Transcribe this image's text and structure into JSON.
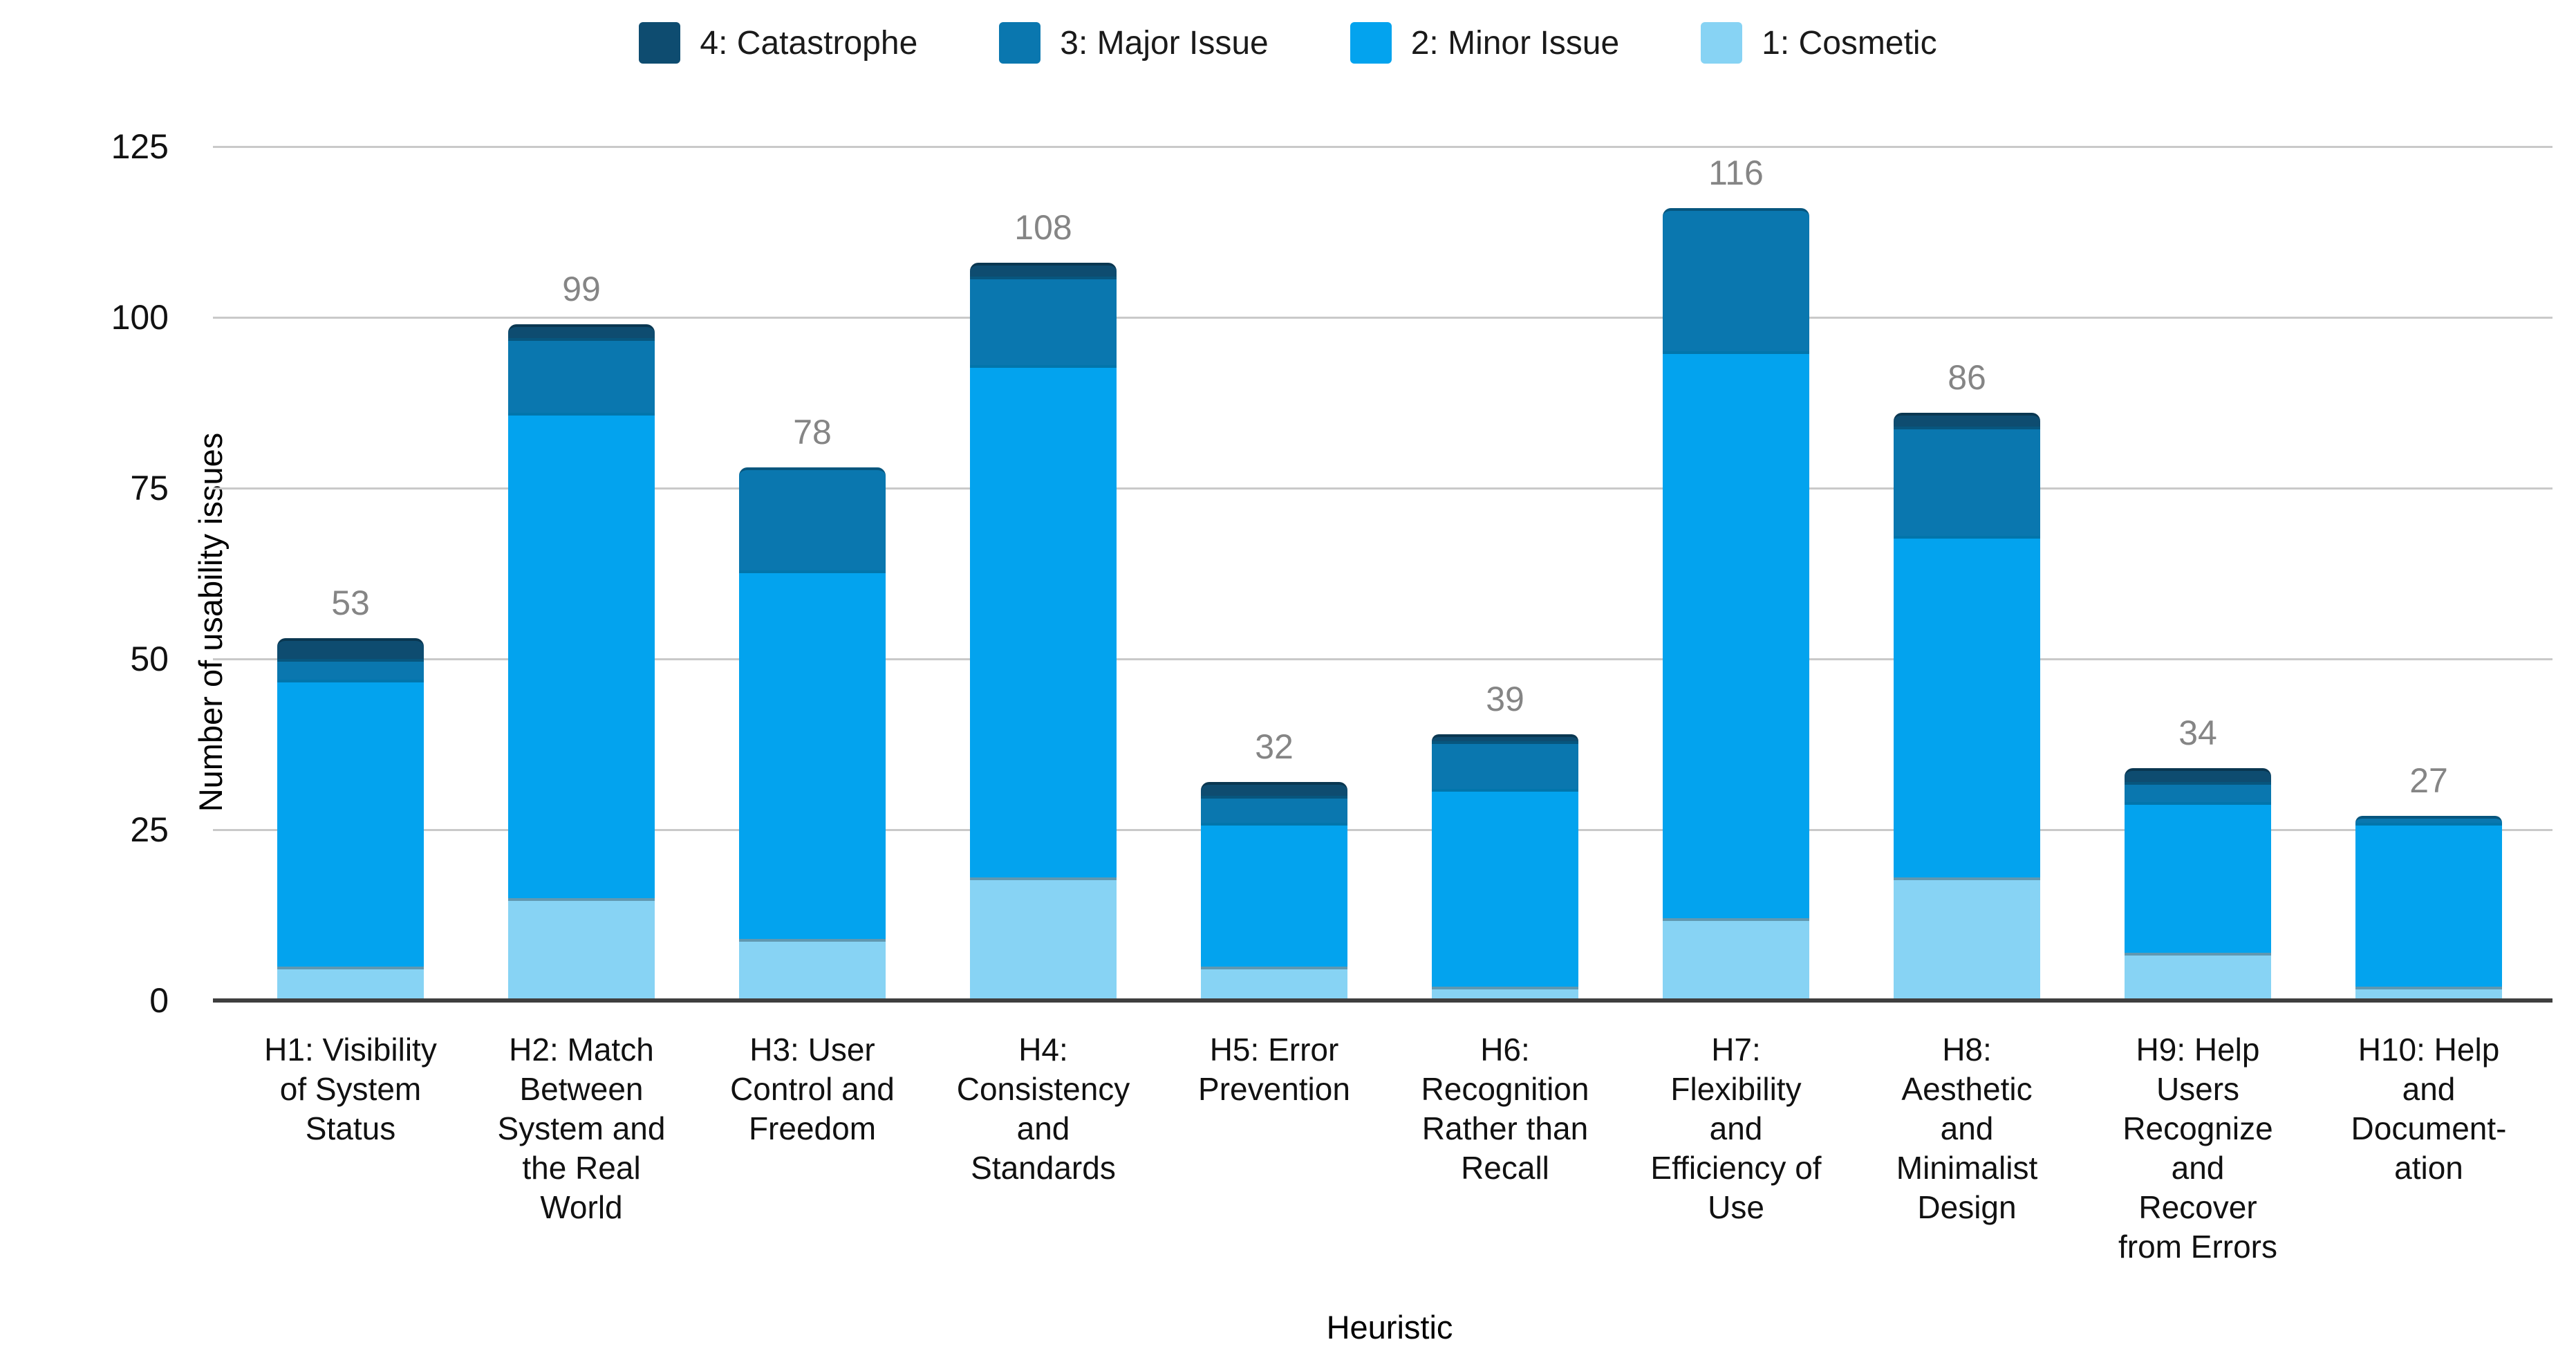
{
  "legend": {
    "items": [
      {
        "label": "4: Catastrophe",
        "color": "#0e4c70"
      },
      {
        "label": "3: Major Issue",
        "color": "#0a77af"
      },
      {
        "label": "2: Minor Issue",
        "color": "#03a3ee"
      },
      {
        "label": "1: Cosmetic",
        "color": "#87d3f4"
      }
    ]
  },
  "chart_data": {
    "type": "bar",
    "stacked": true,
    "orientation": "vertical",
    "xlabel": "Heuristic",
    "ylabel": "Number of usability issues",
    "ylim": [
      0,
      125
    ],
    "yticks": [
      0,
      25,
      50,
      75,
      100,
      125
    ],
    "grid": true,
    "legend_position": "top",
    "colors": {
      "catastrophe": "#0e4c70",
      "major": "#0a77af",
      "minor": "#03a3ee",
      "cosmetic": "#87d3f4",
      "gridline": "#c9c9c9",
      "axis_line": "#3f3f3f",
      "total_label": "#858585"
    },
    "categories": [
      "H1: Visibility\nof System\nStatus",
      "H2: Match\nBetween\nSystem and\nthe Real\nWorld",
      "H3: User\nControl and\nFreedom",
      "H4:\nConsistency\nand\nStandards",
      "H5: Error\nPrevention",
      "H6:\nRecognition\nRather than\nRecall",
      "H7:\nFlexibility\nand\nEfficiency of\nUse",
      "H8:\nAesthetic\nand\nMinimalist\nDesign",
      "H9: Help\nUsers\nRecognize\nand\nRecover\nfrom Errors",
      "H10: Help\nand\nDocument-\nation"
    ],
    "series": [
      {
        "name": "1: Cosmetic",
        "color": "#87d3f4",
        "values": [
          5,
          15,
          9,
          18,
          5,
          2,
          12,
          18,
          7,
          2
        ]
      },
      {
        "name": "2: Minor Issue",
        "color": "#03a3ee",
        "values": [
          42,
          71,
          54,
          75,
          21,
          29,
          83,
          50,
          22,
          24
        ]
      },
      {
        "name": "3: Major Issue",
        "color": "#0a77af",
        "values": [
          3,
          11,
          15,
          13,
          4,
          7,
          21,
          16,
          3,
          1
        ]
      },
      {
        "name": "4: Catastrophe",
        "color": "#0e4c70",
        "values": [
          3,
          2,
          0,
          2,
          2,
          1,
          0,
          2,
          2,
          0
        ]
      }
    ],
    "totals": [
      53,
      99,
      78,
      108,
      32,
      39,
      116,
      86,
      34,
      27
    ]
  }
}
